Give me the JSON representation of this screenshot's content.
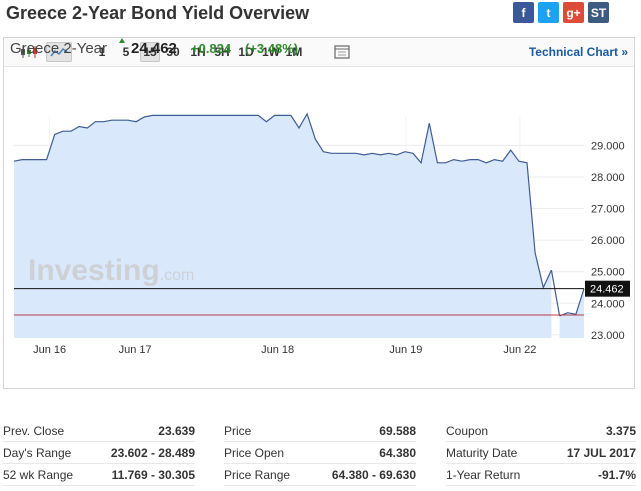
{
  "page": {
    "title": "Greece 2-Year Bond Yield Overview"
  },
  "social": [
    {
      "name": "facebook-icon",
      "glyph": "f",
      "color": "#3b5998"
    },
    {
      "name": "twitter-icon",
      "glyph": "t",
      "color": "#1da1f2"
    },
    {
      "name": "google-plus-icon",
      "glyph": "g+",
      "color": "#dd4b39"
    },
    {
      "name": "stocktwits-icon",
      "glyph": "ST",
      "color": "#3d5a80"
    }
  ],
  "toolbar": {
    "candles_icon": "candlestick-icon",
    "area_icon": "area-chart-icon",
    "intervals": [
      "1",
      "5",
      "15",
      "30",
      "1H",
      "5H",
      "1D",
      "1W",
      "1M"
    ],
    "active_interval": "15",
    "calendar_icon": "calendar-icon",
    "technical_chart": "Technical Chart »"
  },
  "quote": {
    "name": "Greece 2-Year",
    "last": "24.462",
    "change": "+0.824",
    "change_pct": "(+3.48%)"
  },
  "watermark": {
    "brand": "Investing",
    "suffix": ".com"
  },
  "chart_data": {
    "type": "area",
    "x_tick_labels": [
      "Jun 16",
      "Jun 17",
      "Jun 18",
      "Jun 19",
      "Jun 22"
    ],
    "y_ticks": [
      "29.000",
      "28.000",
      "27.000",
      "26.000",
      "25.000",
      "24.000",
      "23.000"
    ],
    "ylim": [
      22.9,
      29.9
    ],
    "current_value_label": "24.462",
    "current_value": 24.462,
    "reference_level": 23.63,
    "series": [
      {
        "x": [
          0,
          1,
          2,
          3,
          4,
          5,
          6,
          7,
          8,
          9,
          10,
          11,
          12,
          13,
          14,
          15,
          16,
          17,
          18,
          19,
          20,
          21,
          22,
          23,
          24,
          25,
          26,
          27,
          28,
          29,
          30,
          31,
          32,
          33,
          34,
          35,
          36,
          37,
          38,
          39,
          40,
          41,
          42,
          43,
          44,
          45,
          46,
          47,
          48,
          49,
          50,
          51,
          52,
          53,
          54,
          55,
          56,
          57,
          58,
          59,
          60,
          61,
          62,
          63,
          64,
          65,
          66
        ],
        "y": [
          28.5,
          28.55,
          28.55,
          28.55,
          28.55,
          29.35,
          29.45,
          29.45,
          29.6,
          29.55,
          29.75,
          29.75,
          29.8,
          29.8,
          29.8,
          29.75,
          29.9,
          29.95,
          29.95,
          29.95,
          29.95,
          29.95,
          29.95,
          29.95,
          29.95,
          29.95,
          29.95,
          29.95,
          29.95,
          29.95,
          29.95,
          29.75,
          29.95,
          29.95,
          29.95,
          29.55,
          30.0,
          29.2,
          28.8,
          28.75,
          28.75,
          28.75,
          28.75,
          28.7,
          28.75,
          28.7,
          28.75,
          28.7,
          28.8,
          28.75,
          28.45,
          29.7,
          28.45,
          28.45,
          28.55,
          28.5,
          28.55,
          28.55,
          28.45,
          28.55,
          28.5,
          28.85,
          28.5,
          28.45,
          25.6,
          24.5,
          25.05
        ]
      },
      {
        "x": [
          67,
          68,
          69,
          70
        ],
        "y": [
          23.6,
          23.7,
          23.65,
          24.462
        ]
      }
    ]
  },
  "stats": {
    "col1": [
      {
        "label": "Prev. Close",
        "value": "23.639"
      },
      {
        "label": "Day's Range",
        "value": "23.602 - 28.489"
      },
      {
        "label": "52 wk Range",
        "value": "11.769 - 30.305"
      }
    ],
    "col2": [
      {
        "label": "Price",
        "value": "69.588"
      },
      {
        "label": "Price Open",
        "value": "64.380"
      },
      {
        "label": "Price Range",
        "value": "64.380 - 69.630"
      }
    ],
    "col3": [
      {
        "label": "Coupon",
        "value": "3.375"
      },
      {
        "label": "Maturity Date",
        "value": "17 JUL 2017"
      },
      {
        "label": "1-Year Return",
        "value": "-91.7%"
      }
    ]
  }
}
